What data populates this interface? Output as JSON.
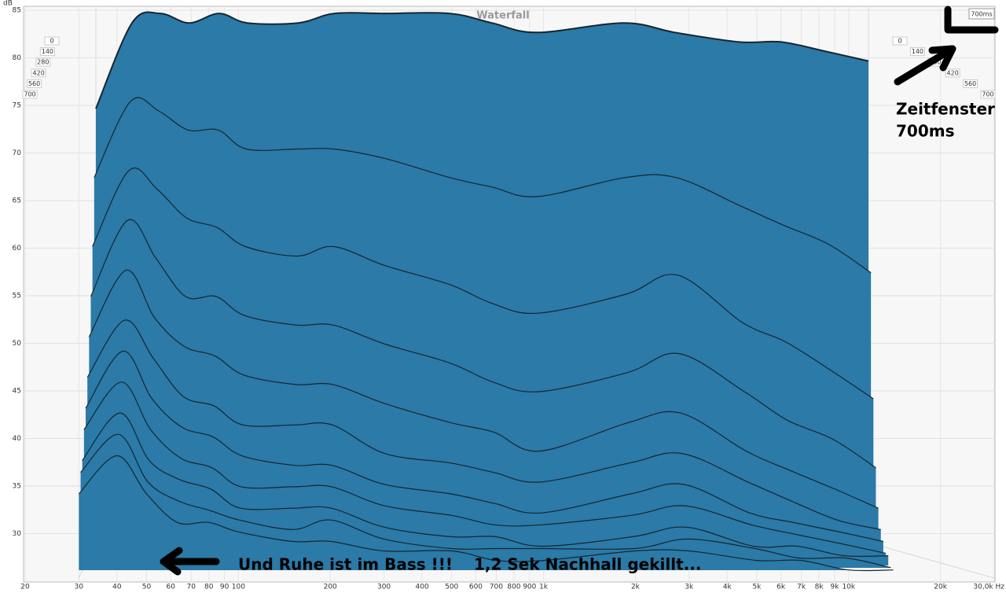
{
  "chart_data": {
    "type": "waterfall",
    "title": "Waterfall",
    "y_label": "dB",
    "time_window_label": "700ms",
    "annotations": [
      "Zeitfenster",
      "700ms",
      "Und Ruhe ist im Bass !!!",
      "1,2 Sek Nachhall gekillt..."
    ],
    "x": [
      30,
      40,
      50,
      63,
      80,
      100,
      150,
      200,
      300,
      500,
      700,
      1000,
      2000,
      3000,
      5000,
      7000,
      10000,
      14000
    ],
    "series": [
      {
        "time": 0,
        "values": [
          74,
          83,
          84,
          83,
          84,
          83,
          83,
          84,
          84,
          84,
          83,
          82,
          83,
          82,
          81,
          81,
          80,
          79
        ]
      },
      {
        "time": 70,
        "values": [
          67,
          75,
          74,
          72,
          72,
          70,
          70,
          70,
          69,
          67,
          66,
          65,
          67,
          67,
          64,
          62,
          60,
          57
        ]
      },
      {
        "time": 140,
        "values": [
          60,
          68,
          66,
          63,
          62,
          60,
          59,
          60,
          58,
          56,
          54,
          53,
          55,
          57,
          52,
          50,
          47,
          44
        ]
      },
      {
        "time": 210,
        "values": [
          55,
          63,
          59,
          55,
          55,
          53,
          52,
          52,
          50,
          48,
          46,
          45,
          47,
          49,
          45,
          42,
          40,
          37
        ]
      },
      {
        "time": 280,
        "values": [
          51,
          58,
          53,
          50,
          49,
          47,
          46,
          46,
          44,
          42,
          41,
          39,
          42,
          43,
          39,
          37,
          35,
          33
        ]
      },
      {
        "time": 350,
        "values": [
          47,
          53,
          49,
          45,
          44,
          42,
          42,
          42,
          39,
          38,
          37,
          36,
          38,
          39,
          36,
          34,
          32,
          31
        ]
      },
      {
        "time": 420,
        "values": [
          44,
          50,
          45,
          42,
          41,
          39,
          38,
          38,
          36,
          35,
          34,
          33,
          35,
          36,
          33,
          32,
          31,
          30
        ]
      },
      {
        "time": 490,
        "values": [
          42,
          47,
          42,
          39,
          38,
          36,
          36,
          36,
          34,
          33,
          32,
          32,
          33,
          34,
          32,
          31,
          30,
          29
        ]
      },
      {
        "time": 560,
        "values": [
          39,
          44,
          39,
          37,
          36,
          34,
          34,
          34,
          32,
          31,
          31,
          30,
          31,
          32,
          30,
          30,
          29,
          29
        ]
      },
      {
        "time": 630,
        "values": [
          38,
          42,
          37,
          35,
          34,
          33,
          32,
          33,
          31,
          30,
          30,
          30,
          30,
          31,
          30,
          29,
          29,
          28
        ]
      },
      {
        "time": 700,
        "values": [
          36,
          40,
          36,
          33,
          33,
          32,
          31,
          31,
          30,
          30,
          29,
          29,
          30,
          30,
          29,
          29,
          28,
          28
        ]
      }
    ],
    "color": "#2b7aa8",
    "line_color": "#16262f",
    "xlim": [
      20,
      30000
    ],
    "log_x": true,
    "xticks": [
      20,
      30,
      40,
      50,
      60,
      70,
      80,
      90,
      100,
      200,
      300,
      400,
      500,
      600,
      700,
      800,
      900,
      {
        "value": 1000,
        "label": "1k"
      },
      {
        "value": 2000,
        "label": "2k"
      },
      {
        "value": 3000,
        "label": "3k"
      },
      {
        "value": 4000,
        "label": "4k"
      },
      {
        "value": 5000,
        "label": "5k"
      },
      {
        "value": 6000,
        "label": "6k"
      },
      {
        "value": 7000,
        "label": "7k"
      },
      {
        "value": 8000,
        "label": "8k"
      },
      {
        "value": 9000,
        "label": "9k"
      },
      {
        "value": 10000,
        "label": "10k"
      },
      {
        "value": 20000,
        "label": "20k"
      },
      {
        "value": 30000,
        "label": "30,0k Hz"
      }
    ],
    "ylim": [
      25,
      85
    ],
    "yticks": [
      30,
      35,
      40,
      45,
      50,
      55,
      60,
      65,
      70,
      75,
      80,
      85
    ],
    "zlim": [
      0,
      700
    ],
    "zticks": [
      0,
      140,
      280,
      420,
      560,
      700
    ],
    "grid": true
  }
}
